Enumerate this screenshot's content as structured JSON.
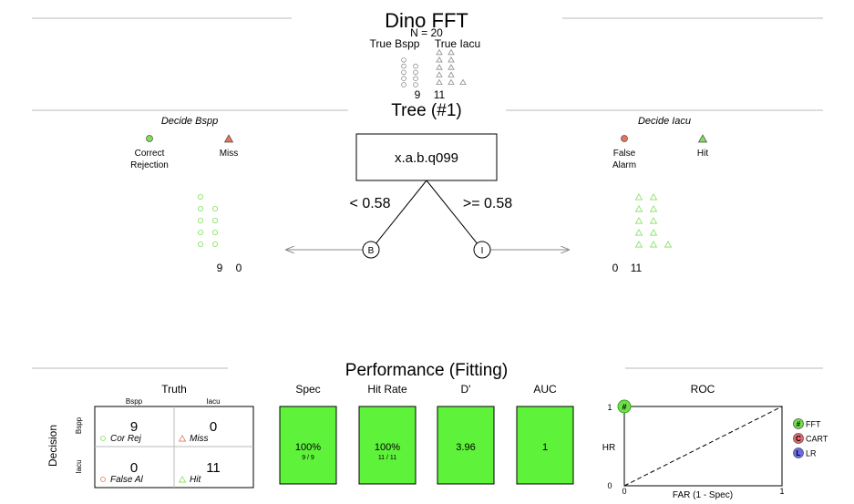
{
  "title": "Dino FFT",
  "n_label": "N = 20",
  "classes": {
    "left": "True Bspp",
    "right": "True Iacu"
  },
  "class_counts": {
    "left": "9",
    "right": "11"
  },
  "tree_title": "Tree (#1)",
  "decide_left": {
    "title": "Decide Bspp",
    "legend": [
      {
        "label1": "Correct",
        "label2": "Rejection",
        "color": "#7ee05a",
        "shape": "circle"
      },
      {
        "label1": "Miss",
        "label2": "",
        "color": "#e8735a",
        "shape": "triangle"
      }
    ],
    "counts": [
      "9",
      "0"
    ]
  },
  "decide_right": {
    "title": "Decide Iacu",
    "legend": [
      {
        "label1": "False",
        "label2": "Alarm",
        "color": "#e8735a",
        "shape": "circle"
      },
      {
        "label1": "Hit",
        "label2": "",
        "color": "#7ee05a",
        "shape": "triangle"
      }
    ],
    "counts": [
      "0",
      "11"
    ]
  },
  "node": {
    "label": "x.a.b.q099",
    "left_branch": "< 0.58",
    "right_branch": ">= 0.58",
    "left_leaf": "B",
    "right_leaf": "I"
  },
  "performance": {
    "title": "Performance (Fitting)",
    "truth": "Truth",
    "decision": "Decision",
    "col_headers": [
      "Bspp",
      "Iacu"
    ],
    "row_headers": [
      "Bspp",
      "Iacu"
    ],
    "cells": [
      {
        "value": "9",
        "label": "Cor Rej",
        "shape": "circle",
        "color": "#7ee05a"
      },
      {
        "value": "0",
        "label": "Miss",
        "shape": "triangle",
        "color": "#e8735a"
      },
      {
        "value": "0",
        "label": "False Al",
        "shape": "circle",
        "color": "#e8735a"
      },
      {
        "value": "11",
        "label": "Hit",
        "shape": "triangle",
        "color": "#7ee05a"
      }
    ],
    "stats": [
      {
        "name": "Spec",
        "value": "100%",
        "sub": "9 / 9",
        "level": 1.0
      },
      {
        "name": "Hit Rate",
        "value": "100%",
        "sub": "11 / 11",
        "level": 1.0
      },
      {
        "name": "D'",
        "value": "3.96",
        "sub": "",
        "level": 1.0
      },
      {
        "name": "AUC",
        "value": "1",
        "sub": "",
        "level": 1.0
      }
    ],
    "bar_color": "#5ef23a"
  },
  "roc": {
    "title": "ROC",
    "xlabel": "FAR (1 - Spec)",
    "ylabel": "HR",
    "x_ticks": [
      "0",
      "1"
    ],
    "y_ticks": [
      "0",
      "1"
    ],
    "point": {
      "far": 0,
      "hr": 1,
      "marker": "#"
    },
    "legend": [
      {
        "symbol": "#",
        "label": "FFT",
        "color": "#6fe04a"
      },
      {
        "symbol": "C",
        "label": "CART",
        "color": "#e86a6a"
      },
      {
        "symbol": "L",
        "label": "LR",
        "color": "#6a6ae8"
      }
    ]
  },
  "colors": {
    "green": "#7ee05a",
    "red": "#e8735a",
    "grey": "#8a8a8a"
  }
}
